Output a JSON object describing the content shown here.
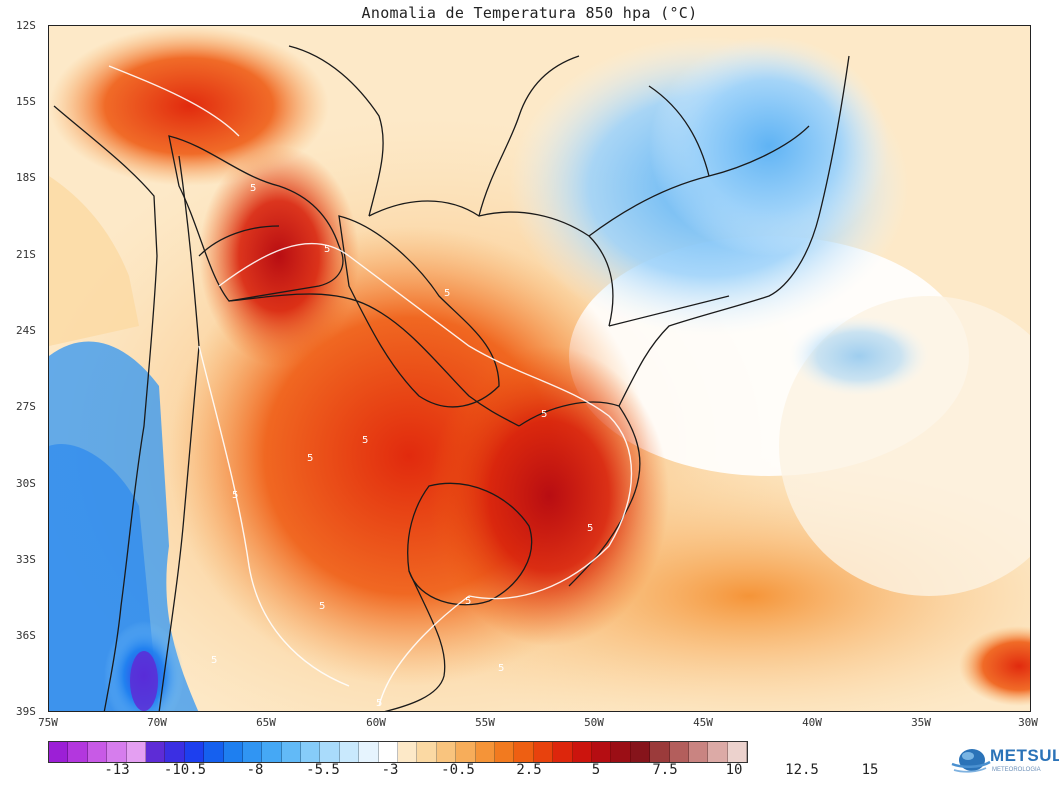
{
  "title": "Anomalia de Temperatura 850 hpa (°C)",
  "lat_labels": [
    "12S",
    "15S",
    "18S",
    "21S",
    "24S",
    "27S",
    "30S",
    "33S",
    "36S",
    "39S"
  ],
  "lon_labels": [
    "75W",
    "70W",
    "65W",
    "60W",
    "55W",
    "50W",
    "45W",
    "40W",
    "35W",
    "30W"
  ],
  "contour_label": "5",
  "colorbar": {
    "labels": [
      "-13",
      "-10.5",
      "-8",
      "-5.5",
      "-3",
      "-0.5",
      "2.5",
      "5",
      "7.5",
      "10",
      "12.5",
      "15"
    ],
    "colors": [
      "#9c1fd6",
      "#b337de",
      "#c85ae6",
      "#d67ded",
      "#e49ff2",
      "#5e2cd6",
      "#3b2fe3",
      "#1d3fef",
      "#1560ef",
      "#1e7ff0",
      "#3095f3",
      "#45a8f5",
      "#62baf7",
      "#86ccf9",
      "#a9dbfb",
      "#c9e9fd",
      "#e6f4fe",
      "#ffffff",
      "#fde9c8",
      "#fbd9a3",
      "#f9c47e",
      "#f7ad5a",
      "#f59438",
      "#f27a1f",
      "#ee5f12",
      "#e8420d",
      "#dd260c",
      "#cc140d",
      "#b50d12",
      "#9b0e15",
      "#86141b",
      "#9b3b3b",
      "#b35e5c",
      "#c98481",
      "#dcaaa6",
      "#ecd2cd"
    ]
  },
  "logo": {
    "text": "METSUL",
    "sub": "METEOROLOGIA"
  }
}
